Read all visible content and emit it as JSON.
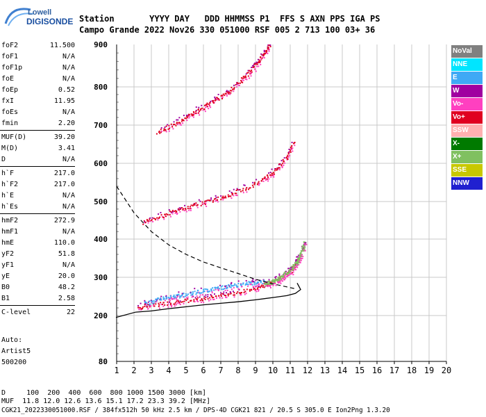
{
  "logo": {
    "brand_top": "Lowell",
    "brand_bottom": "DIGISONDE"
  },
  "header": {
    "row1": "Station       YYYY DAY   DDD HHMMSS P1  FFS S AXN PPS IGA PS",
    "row2": "Campo Grande 2022 Nov26 330 051000 RSF 005 2 713 100 03+ 36"
  },
  "params": [
    {
      "k": "foF2",
      "v": "11.500"
    },
    {
      "k": "foF1",
      "v": "N/A"
    },
    {
      "k": "foF1p",
      "v": "N/A"
    },
    {
      "k": "foE",
      "v": "N/A"
    },
    {
      "k": "foEp",
      "v": "0.52"
    },
    {
      "k": "fxI",
      "v": "11.95"
    },
    {
      "k": "foEs",
      "v": "N/A"
    },
    {
      "k": "fmin",
      "v": "2.20"
    },
    {
      "k": "MUF(D)",
      "v": "39.20"
    },
    {
      "k": "M(D)",
      "v": "3.41"
    },
    {
      "k": "D",
      "v": "N/A"
    },
    {
      "k": "h`F",
      "v": "217.0"
    },
    {
      "k": "h`F2",
      "v": "217.0"
    },
    {
      "k": "h`E",
      "v": "N/A"
    },
    {
      "k": "h`Es",
      "v": "N/A"
    },
    {
      "k": "hmF2",
      "v": "272.9"
    },
    {
      "k": "hmF1",
      "v": "N/A"
    },
    {
      "k": "hmE",
      "v": "110.0"
    },
    {
      "k": "yF2",
      "v": "51.8"
    },
    {
      "k": "yF1",
      "v": "N/A"
    },
    {
      "k": "yE",
      "v": "20.0"
    },
    {
      "k": "B0",
      "v": "48.2"
    },
    {
      "k": "B1",
      "v": "2.58"
    },
    {
      "k": "C-level",
      "v": "22"
    }
  ],
  "auto": {
    "line1": "Auto:",
    "line2": "Artist5",
    "line3": "500200"
  },
  "legend": [
    {
      "label": "NoVal",
      "bg": "#808080",
      "fg": "#ffffff"
    },
    {
      "label": "NNE",
      "bg": "#00e5ff",
      "fg": "#ffffff"
    },
    {
      "label": "E",
      "bg": "#3fa9f5",
      "fg": "#ffffff"
    },
    {
      "label": "W",
      "bg": "#a000a0",
      "fg": "#ffffff"
    },
    {
      "label": "Vo-",
      "bg": "#ff40c0",
      "fg": "#ffffff"
    },
    {
      "label": "Vo+",
      "bg": "#e00020",
      "fg": "#ffffff"
    },
    {
      "label": "SSW",
      "bg": "#ffb0b0",
      "fg": "#ffffff"
    },
    {
      "label": "X-",
      "bg": "#007a00",
      "fg": "#ffffff"
    },
    {
      "label": "X+",
      "bg": "#80c060",
      "fg": "#ffffff"
    },
    {
      "label": "SSE",
      "bg": "#c8c800",
      "fg": "#ffffff"
    },
    {
      "label": "NNW",
      "bg": "#2020d0",
      "fg": "#ffffff"
    }
  ],
  "footer": {
    "line1": "D     100  200  400  600  800 1000 1500 3000 [km]",
    "line2": "MUF  11.8 12.0 12.6 13.6 15.1 17.2 23.3 39.2 [MHz]",
    "line3": "CGK21_2022330051000.RSF / 384fx512h 50 kHz 2.5 km / DPS-4D CGK21 821 / 20.5 S 305.0 E Ion2Png 1.3.20"
  },
  "chart_data": {
    "type": "scatter",
    "title": "",
    "xlabel": "",
    "ylabel": "",
    "xlim": [
      1,
      20
    ],
    "ylim": [
      80,
      900
    ],
    "x_ticks": [
      1,
      2,
      3,
      4,
      5,
      6,
      7,
      8,
      9,
      10,
      11,
      12,
      13,
      14,
      15,
      16,
      17,
      18,
      19,
      20
    ],
    "y_ticks": [
      80,
      200,
      300,
      400,
      500,
      600,
      700,
      800,
      900
    ],
    "grid": true,
    "legend_placement": "right",
    "traces": [
      {
        "name": "F2 O-trace (Vo+)",
        "color": "#e00020",
        "points": [
          [
            2.2,
            222
          ],
          [
            3,
            228
          ],
          [
            4,
            234
          ],
          [
            5,
            240
          ],
          [
            6,
            246
          ],
          [
            7,
            254
          ],
          [
            8,
            262
          ],
          [
            9,
            272
          ],
          [
            9.8,
            285
          ],
          [
            10.5,
            300
          ],
          [
            11,
            318
          ],
          [
            11.4,
            345
          ]
        ]
      },
      {
        "name": "F2 second hop",
        "color": "#e00020",
        "points": [
          [
            2.5,
            445
          ],
          [
            3.5,
            462
          ],
          [
            4.5,
            478
          ],
          [
            5.5,
            492
          ],
          [
            6.5,
            505
          ],
          [
            7.5,
            520
          ],
          [
            8.5,
            538
          ],
          [
            9.5,
            560
          ],
          [
            10.2,
            585
          ],
          [
            10.8,
            620
          ],
          [
            11.2,
            660
          ]
        ]
      },
      {
        "name": "F2 third hop",
        "color": "#e00020",
        "points": [
          [
            3.3,
            680
          ],
          [
            4.5,
            710
          ],
          [
            5.5,
            735
          ],
          [
            6.5,
            762
          ],
          [
            7.5,
            790
          ],
          [
            8.5,
            830
          ],
          [
            9.3,
            870
          ],
          [
            9.8,
            900
          ]
        ]
      },
      {
        "name": "E low-altitude (E)",
        "color": "#3fa9f5",
        "points": [
          [
            2.6,
            232
          ],
          [
            3.5,
            244
          ],
          [
            4.5,
            252
          ],
          [
            5.5,
            262
          ],
          [
            6.5,
            270
          ],
          [
            7.5,
            278
          ],
          [
            8.5,
            285
          ],
          [
            9.5,
            290
          ]
        ]
      },
      {
        "name": "X trace (X+)",
        "color": "#80c060",
        "points": [
          [
            9.5,
            282
          ],
          [
            10.2,
            295
          ],
          [
            10.8,
            312
          ],
          [
            11.3,
            335
          ],
          [
            11.6,
            360
          ],
          [
            11.8,
            390
          ]
        ]
      }
    ],
    "profile": {
      "name": "electron density profile",
      "color": "#000000",
      "points": [
        [
          2.1,
          209
        ],
        [
          3,
          212
        ],
        [
          4,
          218
        ],
        [
          5,
          223
        ],
        [
          6,
          228
        ],
        [
          7,
          232
        ],
        [
          8,
          236
        ],
        [
          9,
          241
        ],
        [
          10,
          247
        ],
        [
          10.8,
          252
        ],
        [
          11.3,
          258
        ],
        [
          11.6,
          268
        ],
        [
          11.4,
          285
        ]
      ]
    },
    "muf_curve": {
      "name": "MUF(D) curve",
      "color": "#000000",
      "points": [
        [
          1,
          540
        ],
        [
          2,
          470
        ],
        [
          3,
          420
        ],
        [
          4,
          385
        ],
        [
          5,
          360
        ],
        [
          6,
          340
        ],
        [
          7,
          325
        ],
        [
          8,
          310
        ],
        [
          9,
          295
        ],
        [
          10,
          283
        ],
        [
          11.3,
          270
        ]
      ]
    }
  }
}
